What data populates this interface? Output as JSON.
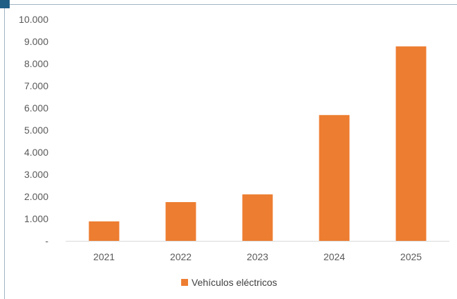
{
  "colors": {
    "bar": "#ED7D31",
    "axis": "#D9D9D9",
    "text": "#595959",
    "corner_tab": "#1F5F86",
    "border": "#9DB3C4"
  },
  "chart_data": {
    "type": "bar",
    "title": "",
    "xlabel": "",
    "ylabel": "",
    "categories": [
      "2021",
      "2022",
      "2023",
      "2024",
      "2025"
    ],
    "series": [
      {
        "name": "Vehículos eléctricos",
        "values": [
          880,
          1750,
          2100,
          5680,
          8780
        ]
      }
    ],
    "ylim": [
      0,
      10000
    ],
    "yticks": [
      0,
      1000,
      2000,
      3000,
      4000,
      5000,
      6000,
      7000,
      8000,
      9000,
      10000
    ],
    "ytick_labels": [
      "-",
      "1.000",
      "2.000",
      "3.000",
      "4.000",
      "5.000",
      "6.000",
      "7.000",
      "8.000",
      "9.000",
      "10.000"
    ],
    "grid": false,
    "legend": "bottom"
  }
}
